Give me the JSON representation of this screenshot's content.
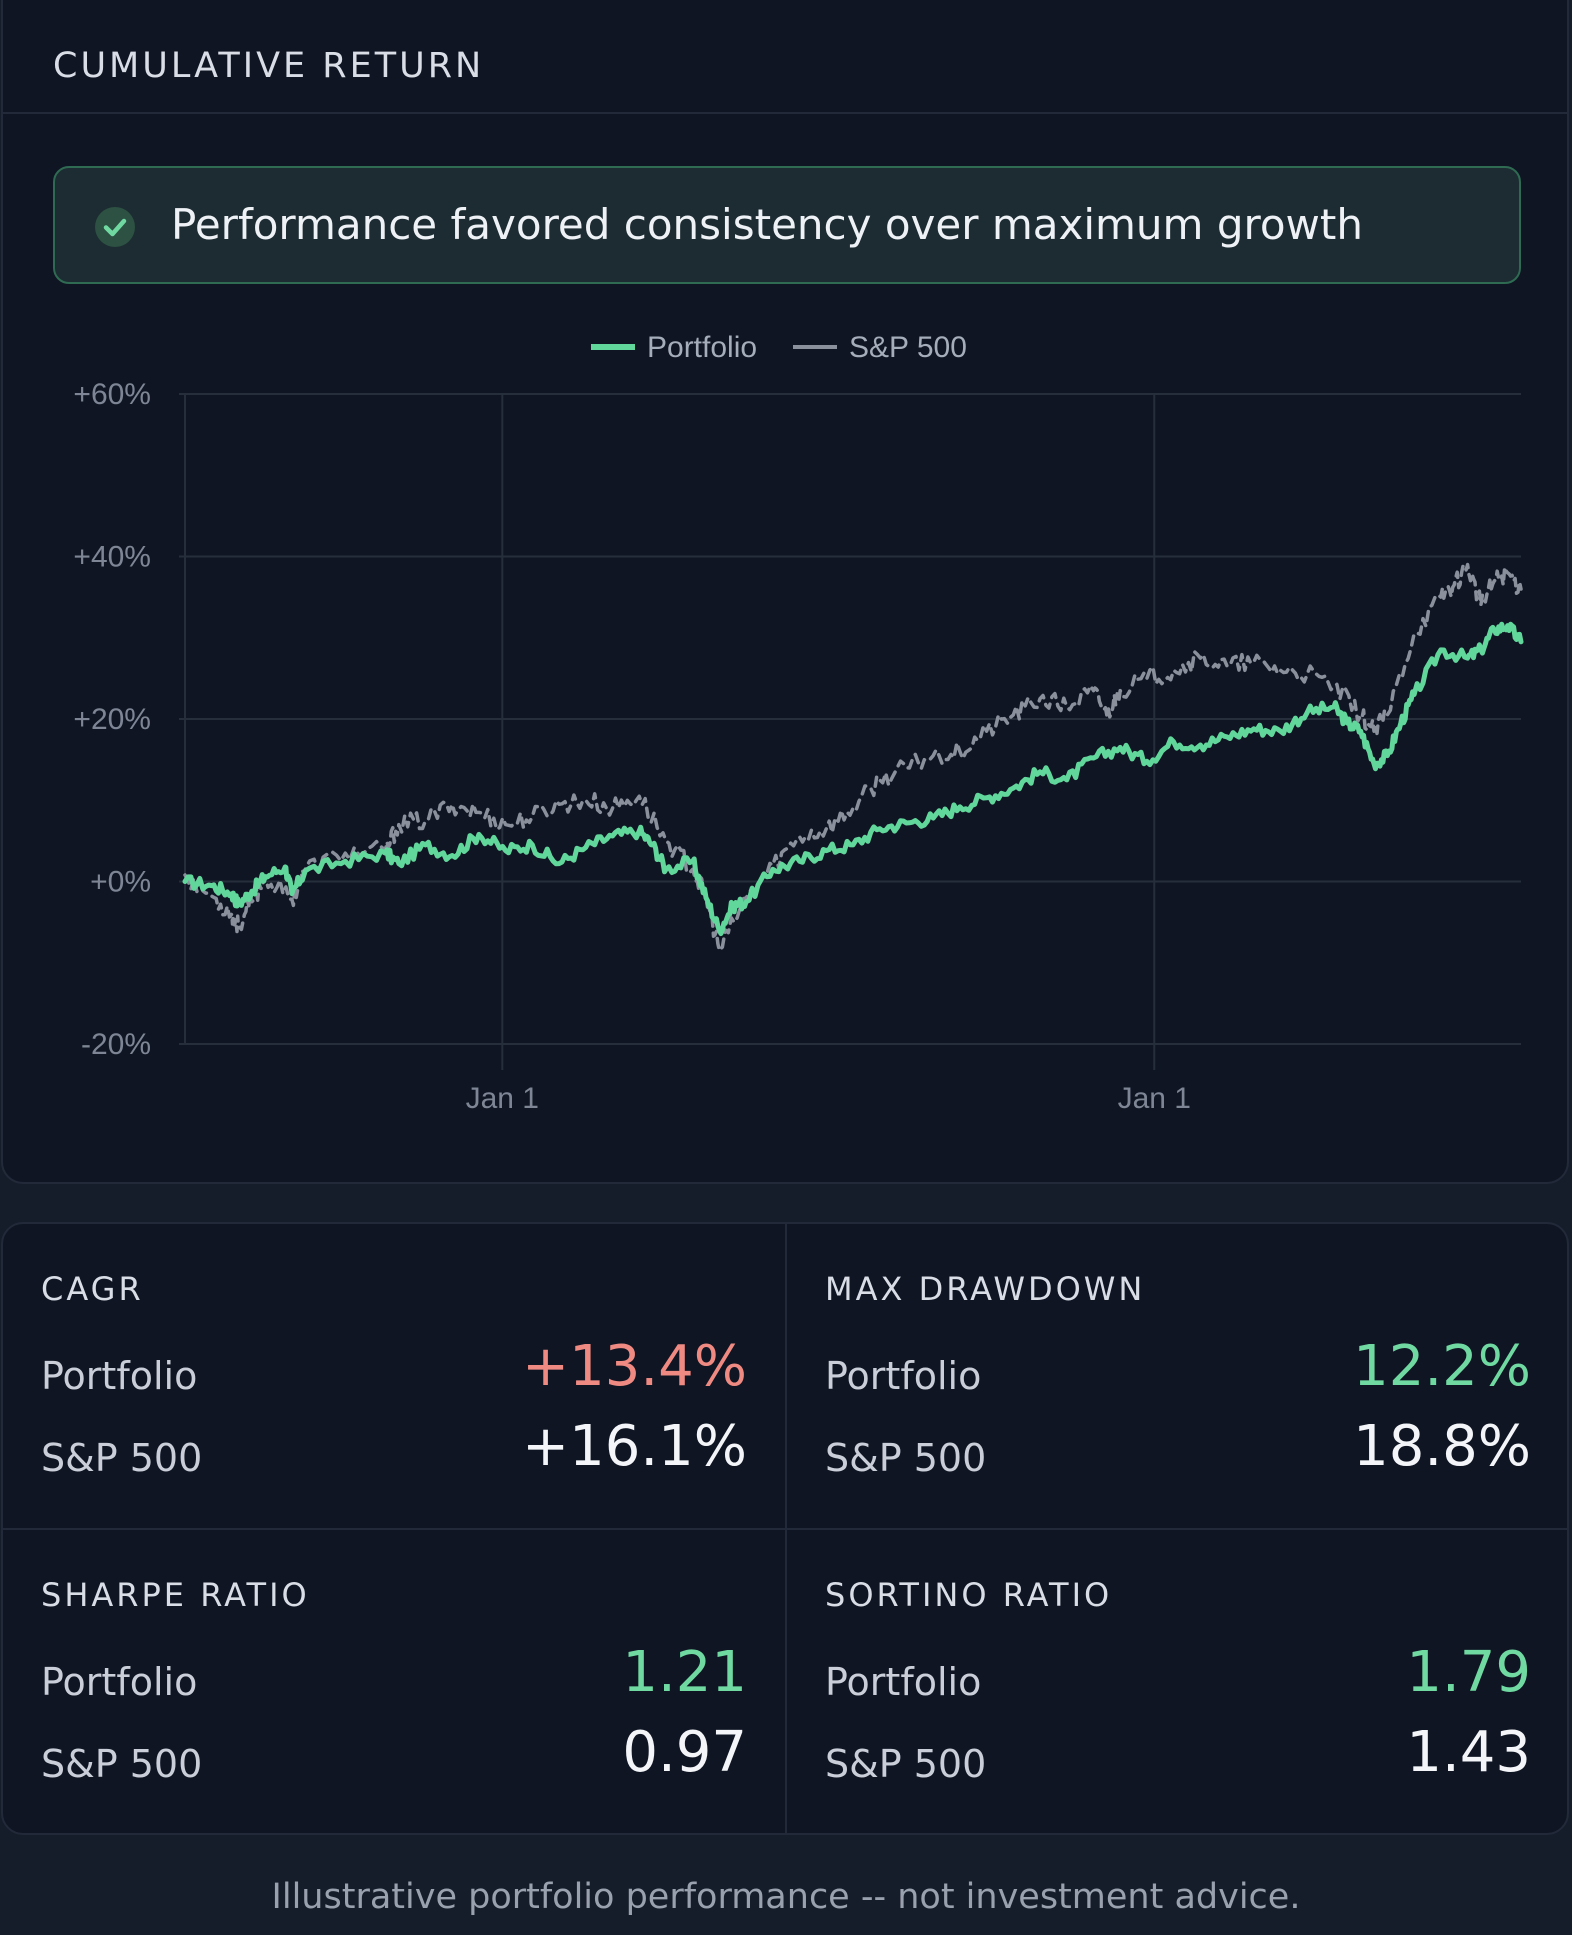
{
  "header": {
    "title": "CUMULATIVE RETURN"
  },
  "banner": {
    "text": "Performance favored consistency over maximum growth",
    "icon": "check-circle-icon",
    "color": "#6fd9a1"
  },
  "chart_data": {
    "type": "line",
    "title": "",
    "xlabel": "",
    "ylabel": "",
    "x_tick_labels": [
      "Jan 1",
      "Jan 1"
    ],
    "y_tick_labels": [
      "+60%",
      "+40%",
      "+20%",
      "+0%",
      "-20%"
    ],
    "ylim": [
      -20,
      60
    ],
    "grid": true,
    "legend": "top-center",
    "series": [
      {
        "name": "Portfolio",
        "color": "#62d79b",
        "style": "solid",
        "points": [
          [
            0,
            0
          ],
          [
            0.02,
            -0.5
          ],
          [
            0.035,
            -1.5
          ],
          [
            0.04,
            -2.8
          ],
          [
            0.05,
            -1.2
          ],
          [
            0.06,
            0.6
          ],
          [
            0.075,
            1.8
          ],
          [
            0.08,
            -1.5
          ],
          [
            0.09,
            1.3
          ],
          [
            0.12,
            2.5
          ],
          [
            0.15,
            3.5
          ],
          [
            0.16,
            2.2
          ],
          [
            0.18,
            4.5
          ],
          [
            0.2,
            3.2
          ],
          [
            0.22,
            5.8
          ],
          [
            0.24,
            3.8
          ],
          [
            0.26,
            4.5
          ],
          [
            0.28,
            2.2
          ],
          [
            0.3,
            4.2
          ],
          [
            0.32,
            5.6
          ],
          [
            0.34,
            6.2
          ],
          [
            0.35,
            4.5
          ],
          [
            0.36,
            1.5
          ],
          [
            0.38,
            2.5
          ],
          [
            0.39,
            -2
          ],
          [
            0.4,
            -6
          ],
          [
            0.41,
            -3
          ],
          [
            0.42,
            -2.5
          ],
          [
            0.44,
            1.5
          ],
          [
            0.46,
            2.5
          ],
          [
            0.48,
            3.8
          ],
          [
            0.5,
            4.5
          ],
          [
            0.52,
            6.5
          ],
          [
            0.54,
            7.2
          ],
          [
            0.56,
            7.8
          ],
          [
            0.58,
            9.2
          ],
          [
            0.6,
            10.3
          ],
          [
            0.62,
            11.5
          ],
          [
            0.64,
            13.5
          ],
          [
            0.66,
            12.5
          ],
          [
            0.68,
            15.2
          ],
          [
            0.7,
            16.5
          ],
          [
            0.72,
            14.8
          ],
          [
            0.74,
            17.2
          ],
          [
            0.76,
            16.8
          ],
          [
            0.78,
            17.8
          ],
          [
            0.8,
            18.8
          ],
          [
            0.82,
            18.5
          ],
          [
            0.84,
            20.8
          ],
          [
            0.86,
            21.5
          ],
          [
            0.87,
            19.5
          ],
          [
            0.88,
            18.5
          ],
          [
            0.89,
            14.5
          ],
          [
            0.9,
            15.5
          ],
          [
            0.91,
            19.5
          ],
          [
            0.92,
            23
          ],
          [
            0.94,
            28.5
          ],
          [
            0.96,
            27.5
          ],
          [
            0.97,
            28.5
          ],
          [
            0.98,
            31
          ],
          [
            0.99,
            31.5
          ],
          [
            1.0,
            29.5
          ]
        ]
      },
      {
        "name": "S&P 500",
        "color": "#8a909c",
        "style": "dashed",
        "points": [
          [
            0,
            0.8
          ],
          [
            0.02,
            -1.8
          ],
          [
            0.035,
            -4
          ],
          [
            0.04,
            -5.5
          ],
          [
            0.05,
            -2.5
          ],
          [
            0.06,
            0.5
          ],
          [
            0.08,
            -2.2
          ],
          [
            0.09,
            1.5
          ],
          [
            0.12,
            3.5
          ],
          [
            0.15,
            3.8
          ],
          [
            0.16,
            7
          ],
          [
            0.18,
            7.5
          ],
          [
            0.2,
            9.5
          ],
          [
            0.22,
            8.5
          ],
          [
            0.24,
            7
          ],
          [
            0.26,
            8
          ],
          [
            0.28,
            9.5
          ],
          [
            0.3,
            10
          ],
          [
            0.32,
            9
          ],
          [
            0.34,
            10.5
          ],
          [
            0.36,
            5
          ],
          [
            0.38,
            1.5
          ],
          [
            0.39,
            -2
          ],
          [
            0.4,
            -8.5
          ],
          [
            0.42,
            -2
          ],
          [
            0.44,
            2
          ],
          [
            0.46,
            5.5
          ],
          [
            0.48,
            6.5
          ],
          [
            0.5,
            9
          ],
          [
            0.52,
            12.5
          ],
          [
            0.54,
            14
          ],
          [
            0.56,
            15.5
          ],
          [
            0.58,
            16
          ],
          [
            0.6,
            18.5
          ],
          [
            0.62,
            20.5
          ],
          [
            0.64,
            22.5
          ],
          [
            0.66,
            21.5
          ],
          [
            0.68,
            23.5
          ],
          [
            0.69,
            20.5
          ],
          [
            0.7,
            23.5
          ],
          [
            0.72,
            25
          ],
          [
            0.74,
            26
          ],
          [
            0.76,
            27.5
          ],
          [
            0.78,
            26.5
          ],
          [
            0.8,
            27
          ],
          [
            0.82,
            26
          ],
          [
            0.84,
            25.5
          ],
          [
            0.86,
            24
          ],
          [
            0.88,
            20.5
          ],
          [
            0.89,
            18.5
          ],
          [
            0.9,
            20.5
          ],
          [
            0.92,
            30.5
          ],
          [
            0.94,
            35
          ],
          [
            0.95,
            36.5
          ],
          [
            0.96,
            39
          ],
          [
            0.97,
            34
          ],
          [
            0.98,
            37
          ],
          [
            0.99,
            38
          ],
          [
            1.0,
            36
          ]
        ]
      }
    ]
  },
  "stats": [
    {
      "title": "CAGR",
      "portfolio_label": "Portfolio",
      "portfolio_value": "+13.4%",
      "portfolio_tone": "neg",
      "benchmark_label": "S&P 500",
      "benchmark_value": "+16.1%"
    },
    {
      "title": "MAX DRAWDOWN",
      "portfolio_label": "Portfolio",
      "portfolio_value": "12.2%",
      "portfolio_tone": "pos",
      "benchmark_label": "S&P 500",
      "benchmark_value": "18.8%"
    },
    {
      "title": "SHARPE RATIO",
      "portfolio_label": "Portfolio",
      "portfolio_value": "1.21",
      "portfolio_tone": "pos",
      "benchmark_label": "S&P 500",
      "benchmark_value": "0.97"
    },
    {
      "title": "SORTINO RATIO",
      "portfolio_label": "Portfolio",
      "portfolio_value": "1.79",
      "portfolio_tone": "pos",
      "benchmark_label": "S&P 500",
      "benchmark_value": "1.43"
    }
  ],
  "footer": {
    "text": "Illustrative portfolio performance -- not investment advice."
  }
}
